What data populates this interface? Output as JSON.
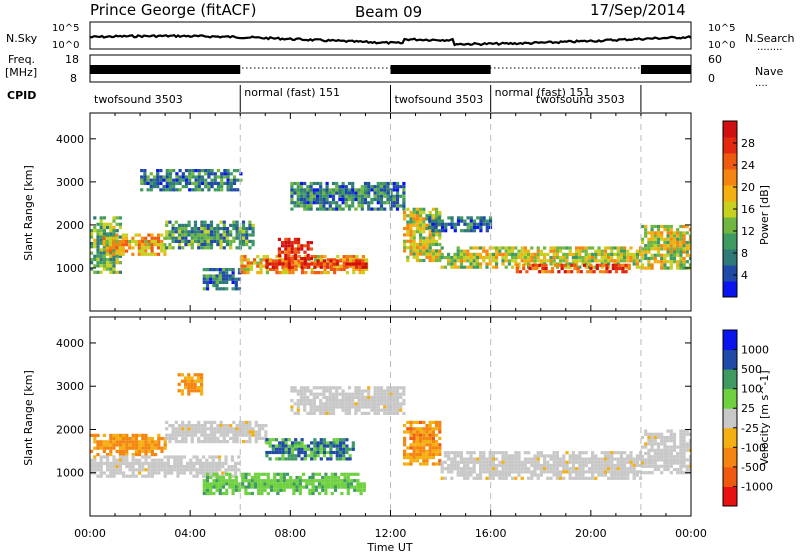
{
  "header": {
    "station": "Prince George (fitACF)",
    "beam": "Beam 09",
    "date": "17/Sep/2014"
  },
  "top_panels": {
    "nsky_label": "N.Sky",
    "nsky_ticks": [
      "10^5",
      "10^0"
    ],
    "nsearch_label": "N.Search",
    "nsearch_ticks": [
      "10^5",
      "10^0"
    ],
    "freq_label": "Freq.",
    "freq_unit": "[MHz]",
    "freq_ticks": [
      "18",
      "8"
    ],
    "nave_label": "Nave",
    "nave_ticks": [
      "60",
      "0"
    ],
    "cpid_label": "CPID"
  },
  "cpid_segments": [
    {
      "label": "twofsound 3503",
      "start_h": 0,
      "end_h": 6
    },
    {
      "label": "normal (fast) 151",
      "start_h": 6,
      "end_h": 12
    },
    {
      "label": "twofsound 3503",
      "start_h": 12,
      "end_h": 16
    },
    {
      "label": "normal (fast) 151",
      "start_h": 16,
      "end_h": 22
    },
    {
      "label": "twofsound 3503",
      "start_h": 22,
      "end_h": 24
    }
  ],
  "chart_data": [
    {
      "type": "heatmap",
      "title": "",
      "xlabel": "Time UT",
      "ylabel": "Slant Range [km]",
      "xlim": [
        0,
        24
      ],
      "ylim": [
        0,
        4600
      ],
      "x_ticks": [
        "00:00",
        "04:00",
        "08:00",
        "12:00",
        "16:00",
        "20:00",
        "00:00"
      ],
      "y_ticks": [
        1000,
        2000,
        3000,
        4000
      ],
      "colorbar": {
        "label": "Power [dB]",
        "range": [
          0,
          32
        ],
        "ticks": [
          4,
          8,
          12,
          16,
          20,
          24,
          28
        ],
        "colors": [
          "#0a14ee",
          "#1f4aa8",
          "#2f7a78",
          "#3f9a62",
          "#70b640",
          "#c8d020",
          "#f4b010",
          "#f58410",
          "#f05a10",
          "#e42810",
          "#d01010"
        ]
      },
      "regions": [
        {
          "x": [
            0,
            1.2
          ],
          "range_km": [
            900,
            2200
          ],
          "value": 12
        },
        {
          "x": [
            0.5,
            3.0
          ],
          "range_km": [
            1300,
            1800
          ],
          "value": 20
        },
        {
          "x": [
            3.0,
            6.5
          ],
          "range_km": [
            1500,
            2100
          ],
          "value": 10
        },
        {
          "x": [
            2.0,
            6.0
          ],
          "range_km": [
            2800,
            3300
          ],
          "value": 8
        },
        {
          "x": [
            6.0,
            11.0
          ],
          "range_km": [
            900,
            1300
          ],
          "value": 20
        },
        {
          "x": [
            7.0,
            11.0
          ],
          "range_km": [
            1000,
            1200
          ],
          "value": 28
        },
        {
          "x": [
            7.5,
            8.8
          ],
          "range_km": [
            1200,
            1700
          ],
          "value": 28
        },
        {
          "x": [
            4.5,
            6.0
          ],
          "range_km": [
            500,
            1000
          ],
          "value": 8
        },
        {
          "x": [
            8.0,
            12.5
          ],
          "range_km": [
            2400,
            3000
          ],
          "value": 8
        },
        {
          "x": [
            12.5,
            14.0
          ],
          "range_km": [
            1200,
            2400
          ],
          "value": 16
        },
        {
          "x": [
            13.5,
            16.0
          ],
          "range_km": [
            1900,
            2200
          ],
          "value": 6
        },
        {
          "x": [
            14.0,
            22.0
          ],
          "range_km": [
            1000,
            1500
          ],
          "value": 16
        },
        {
          "x": [
            17.0,
            21.5
          ],
          "range_km": [
            900,
            1100
          ],
          "value": 26
        },
        {
          "x": [
            22.0,
            24.0
          ],
          "range_km": [
            1000,
            2000
          ],
          "value": 16
        }
      ]
    },
    {
      "type": "heatmap",
      "title": "",
      "xlabel": "Time UT",
      "ylabel": "Slant Range [km]",
      "xlim": [
        0,
        24
      ],
      "ylim": [
        0,
        4600
      ],
      "x_ticks": [
        "00:00",
        "04:00",
        "08:00",
        "12:00",
        "16:00",
        "20:00",
        "00:00"
      ],
      "y_ticks": [
        1000,
        2000,
        3000,
        4000
      ],
      "colorbar": {
        "label": "Velocity [m s^-1]",
        "ticks": [
          "1000",
          "500",
          "100",
          "25",
          "-25",
          "-100",
          "-500",
          "-1000"
        ],
        "colors": [
          "#0a14ee",
          "#1f4aa8",
          "#3f9a62",
          "#6fd040",
          "#c8c8c8",
          "#f4b010",
          "#f58410",
          "#f05a10",
          "#e81010"
        ]
      },
      "regions": [
        {
          "x": [
            0,
            3.0
          ],
          "range_km": [
            1400,
            1900
          ],
          "value": "-100"
        },
        {
          "x": [
            0,
            6.0
          ],
          "range_km": [
            900,
            1400
          ],
          "value": "25"
        },
        {
          "x": [
            3.0,
            7.0
          ],
          "range_km": [
            1700,
            2200
          ],
          "value": "25"
        },
        {
          "x": [
            3.5,
            4.5
          ],
          "range_km": [
            2800,
            3300
          ],
          "value": "-100"
        },
        {
          "x": [
            7.0,
            10.5
          ],
          "range_km": [
            1300,
            1800
          ],
          "value": "500"
        },
        {
          "x": [
            4.5,
            11.0
          ],
          "range_km": [
            500,
            1000
          ],
          "value": "100"
        },
        {
          "x": [
            8.0,
            12.5
          ],
          "range_km": [
            2400,
            3000
          ],
          "value": "25"
        },
        {
          "x": [
            12.5,
            14.0
          ],
          "range_km": [
            1200,
            2200
          ],
          "value": "-500"
        },
        {
          "x": [
            14.0,
            22.0
          ],
          "range_km": [
            900,
            1500
          ],
          "value": "25"
        },
        {
          "x": [
            22.0,
            24.0
          ],
          "range_km": [
            1000,
            2000
          ],
          "value": "25"
        }
      ]
    }
  ]
}
